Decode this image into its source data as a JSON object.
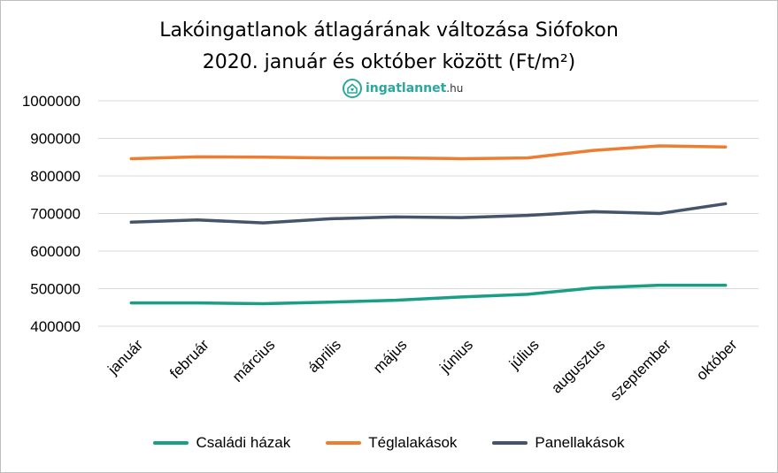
{
  "chart_data": {
    "type": "line",
    "title_line1": "Lakóingatlanok átlagárának változása Siófokon",
    "title_line2": "2020. január és október között (Ft/m²)",
    "logo_text": "ingatlannet",
    "logo_suffix": ".hu",
    "categories": [
      "január",
      "február",
      "március",
      "április",
      "május",
      "június",
      "július",
      "augusztus",
      "szeptember",
      "október"
    ],
    "ylim": [
      400000,
      1000000
    ],
    "yticks": [
      1000000,
      900000,
      800000,
      700000,
      600000,
      500000,
      400000
    ],
    "ytick_labels": [
      "1000000",
      "900000",
      "800000",
      "700000",
      "600000",
      "500000",
      "400000"
    ],
    "grid": true,
    "legend_position": "bottom",
    "series": [
      {
        "name": "Családi házak",
        "color": "#1a9e86",
        "values": [
          462000,
          462000,
          460000,
          464000,
          469000,
          478000,
          485000,
          502000,
          509000,
          509000
        ]
      },
      {
        "name": "Téglalakások",
        "color": "#ed7d31",
        "values": [
          846000,
          851000,
          850000,
          848000,
          848000,
          846000,
          848000,
          868000,
          880000,
          877000
        ]
      },
      {
        "name": "Panellakások",
        "color": "#44546a",
        "values": [
          677000,
          683000,
          675000,
          686000,
          691000,
          689000,
          695000,
          705000,
          700000,
          726000
        ]
      }
    ]
  }
}
